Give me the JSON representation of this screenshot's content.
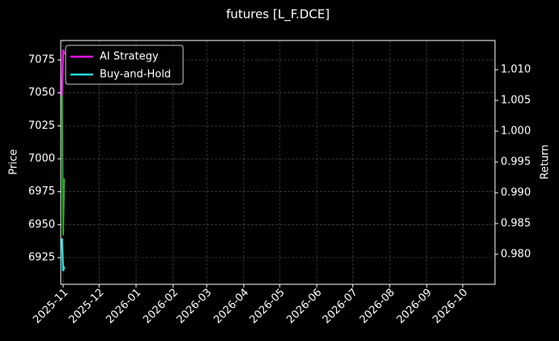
{
  "chart_data": {
    "type": "line",
    "title": "futures [L_F.DCE]",
    "y_label": "Price",
    "y2_label": "Return",
    "x": [
      "2025-10-31",
      "2025-11-01",
      "2025-11-02"
    ],
    "price": {
      "color": "#22aa22",
      "values": [
        7059,
        6942,
        6985
      ]
    },
    "series": [
      {
        "name": "AI Strategy",
        "color": "#ee11ee",
        "axis": "y2",
        "values": [
          1.0058,
          1.0132,
          1.0125
        ]
      },
      {
        "name": "Buy-and-Hold",
        "color": "#22dddd",
        "axis": "y2",
        "values": [
          0.9826,
          0.9773,
          0.978
        ]
      }
    ],
    "xlim": [
      "2025-10-30",
      "2026-10-28"
    ],
    "xticks": [
      "2025-11",
      "2025-12",
      "2026-01",
      "2026-02",
      "2026-03",
      "2026-04",
      "2026-05",
      "2026-06",
      "2026-07",
      "2026-08",
      "2026-09",
      "2026-10"
    ],
    "ylim": [
      6904.7,
      7089.8
    ],
    "yticks": [
      6925,
      6950,
      6975,
      7000,
      7025,
      7050,
      7075
    ],
    "y2lim": [
      0.97513,
      1.01474
    ],
    "y2ticks": [
      {
        "value": 0.98,
        "label": "0.980"
      },
      {
        "value": 0.985,
        "label": "0.985"
      },
      {
        "value": 0.99,
        "label": "0.990"
      },
      {
        "value": 0.995,
        "label": "0.995"
      },
      {
        "value": 1.0,
        "label": "1.000"
      },
      {
        "value": 1.005,
        "label": "1.005"
      },
      {
        "value": 1.01,
        "label": "1.010"
      }
    ],
    "grid": true,
    "legend": "upper left"
  }
}
